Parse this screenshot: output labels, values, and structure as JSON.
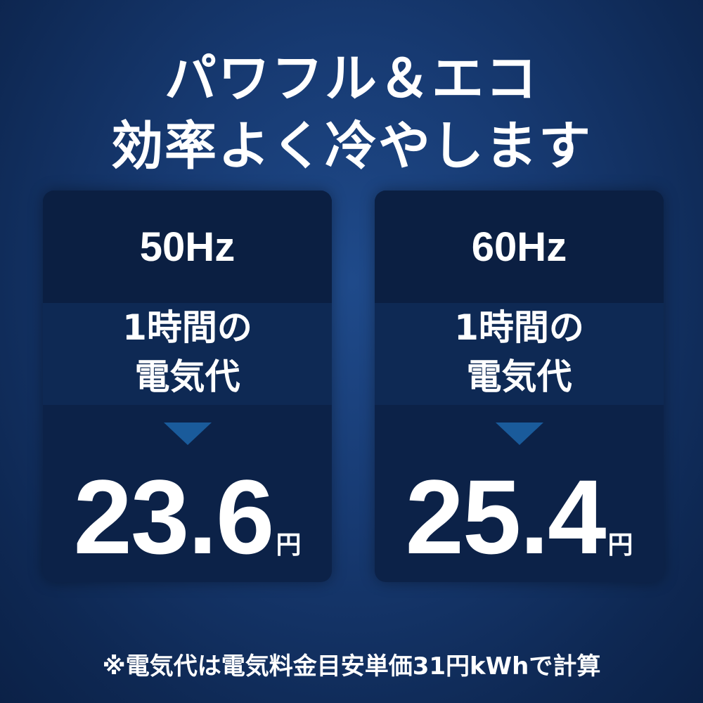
{
  "headline": {
    "line1": "パワフル＆エコ",
    "line2": "効率よく冷やします"
  },
  "cards": [
    {
      "frequency": "50Hz",
      "label_line1": "1時間の",
      "label_line2": "電気代",
      "value": "23.6",
      "unit": "円"
    },
    {
      "frequency": "60Hz",
      "label_line1": "1時間の",
      "label_line2": "電気代",
      "value": "25.4",
      "unit": "円"
    }
  ],
  "footnote": "※電気代は電気料金目安単価31円kWhで計算",
  "colors": {
    "background": "#173a72",
    "card": "#0c2248",
    "arrow": "#1a5b9b"
  }
}
